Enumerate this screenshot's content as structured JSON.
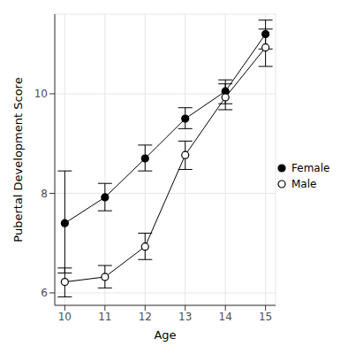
{
  "chart_data": {
    "type": "line",
    "x_label": "Age",
    "y_label": "Pubertal Development Score",
    "x": [
      10,
      11,
      12,
      13,
      14,
      15
    ],
    "xlim": [
      9.75,
      15.25
    ],
    "xticks": [
      10,
      11,
      12,
      13,
      14,
      15
    ],
    "ylim": [
      5.75,
      11.6
    ],
    "yticks": [
      6,
      8,
      10
    ],
    "grid": true,
    "legend": "right",
    "series": [
      {
        "name": "Female",
        "color": "#000000",
        "marker": "circle",
        "values": [
          7.4,
          7.92,
          8.7,
          9.5,
          10.05,
          11.2
        ],
        "error_low": [
          6.4,
          7.65,
          8.45,
          9.3,
          9.8,
          10.9
        ],
        "error_high": [
          8.45,
          8.2,
          8.97,
          9.72,
          10.28,
          11.48
        ]
      },
      {
        "name": "Male",
        "color": "#000000",
        "marker": "open_circle",
        "values": [
          6.22,
          6.32,
          6.93,
          8.77,
          9.93,
          10.93
        ],
        "error_low": [
          5.92,
          6.1,
          6.67,
          8.48,
          9.68,
          10.55
        ],
        "error_high": [
          6.5,
          6.55,
          7.2,
          9.05,
          10.2,
          11.3
        ]
      }
    ]
  }
}
